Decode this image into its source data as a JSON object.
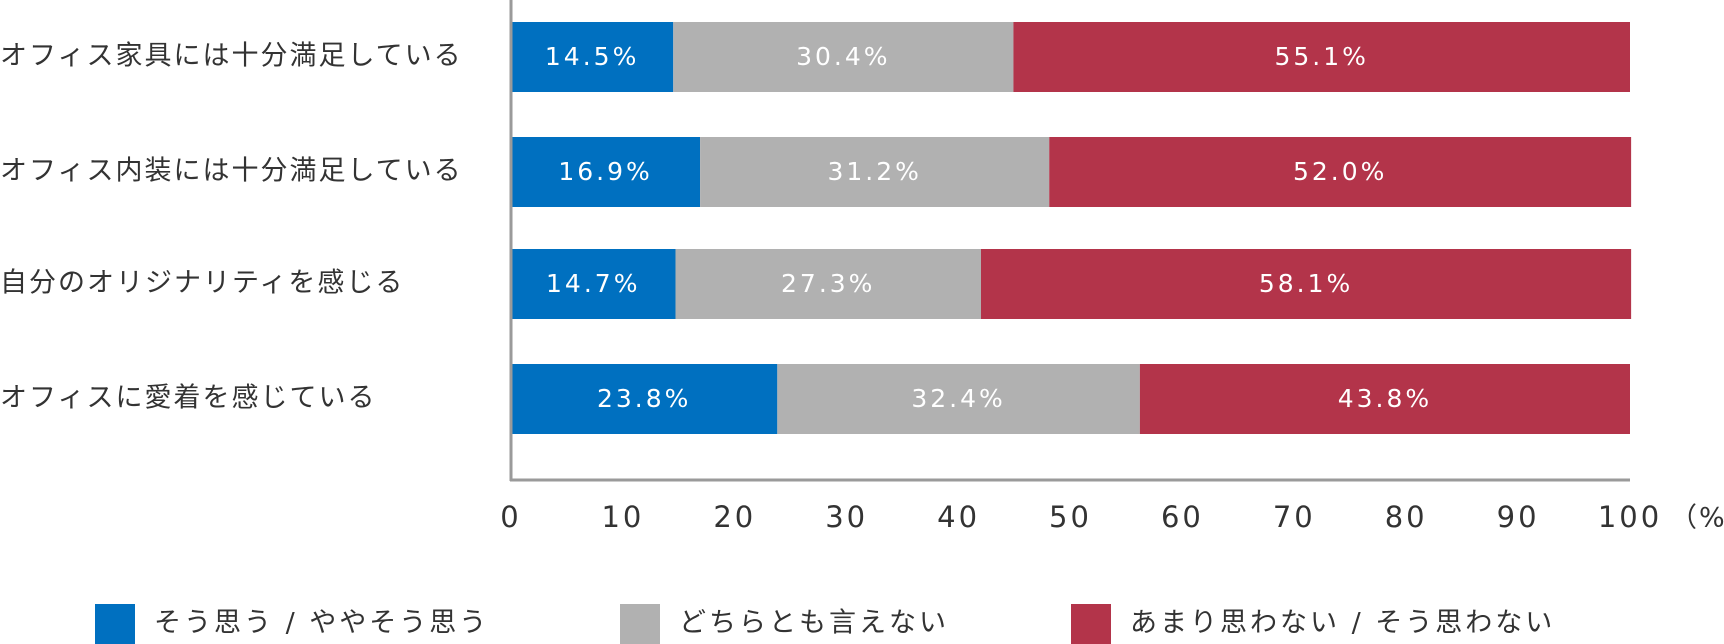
{
  "chart_data": {
    "type": "bar",
    "orientation": "horizontal",
    "stacked": true,
    "categories": [
      "オフィス家具には十分満足している",
      "オフィス内装には十分満足している",
      "自分のオリジナリティを感じる",
      "オフィスに愛着を感じている"
    ],
    "series": [
      {
        "name": "そう思う / ややそう思う",
        "color": "#0070c0",
        "values": [
          14.5,
          16.9,
          14.7,
          23.8
        ],
        "labels": [
          "14.5%",
          "16.9%",
          "14.7%",
          "23.8%"
        ]
      },
      {
        "name": "どちらとも言えない",
        "color": "#b1b1b1",
        "values": [
          30.4,
          31.2,
          27.3,
          32.4
        ],
        "labels": [
          "30.4%",
          "31.2%",
          "27.3%",
          "32.4%"
        ]
      },
      {
        "name": "あまり思わない / そう思わない",
        "color": "#b3344a",
        "values": [
          55.1,
          52.0,
          58.1,
          43.8
        ],
        "labels": [
          "55.1%",
          "52.0%",
          "58.1%",
          "43.8%"
        ]
      }
    ],
    "xlim": [
      0,
      100
    ],
    "xticks": [
      "0",
      "10",
      "20",
      "30",
      "40",
      "50",
      "60",
      "70",
      "80",
      "90",
      "100"
    ],
    "xunit": "（%）",
    "grid": false,
    "legend": "bottom",
    "axis_color": "#9a9a9a"
  }
}
